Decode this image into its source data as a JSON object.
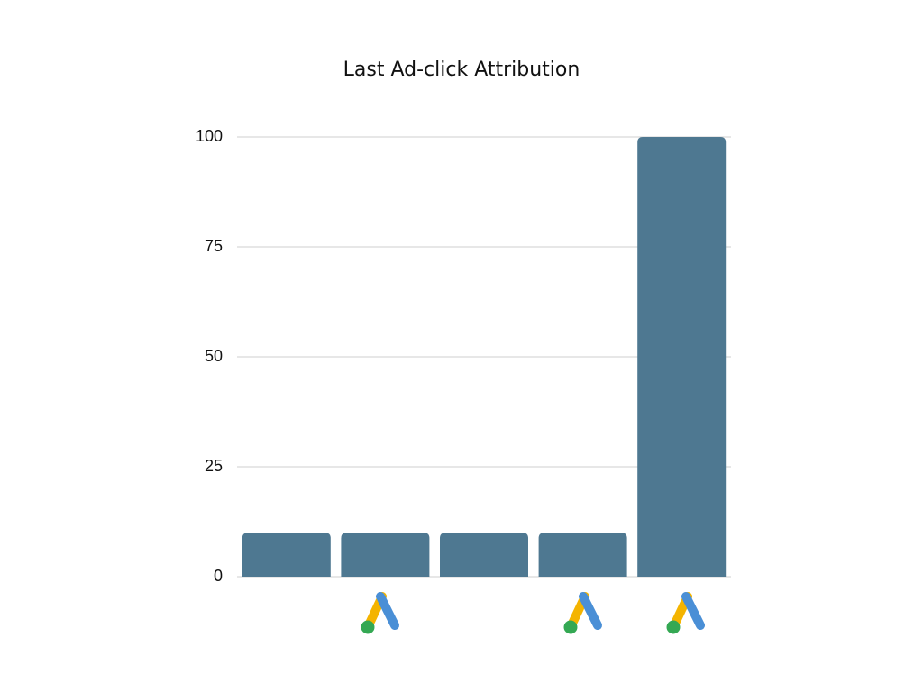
{
  "chart_data": {
    "type": "bar",
    "title": "Last Ad-click Attribution",
    "categories": [
      null,
      null,
      null,
      null,
      null
    ],
    "values": [
      10,
      10,
      10,
      10,
      100
    ],
    "color": "#4e7891",
    "ylim": [
      0,
      100
    ],
    "yticks": [
      0,
      25,
      50,
      75,
      100
    ],
    "grid": true
  }
}
